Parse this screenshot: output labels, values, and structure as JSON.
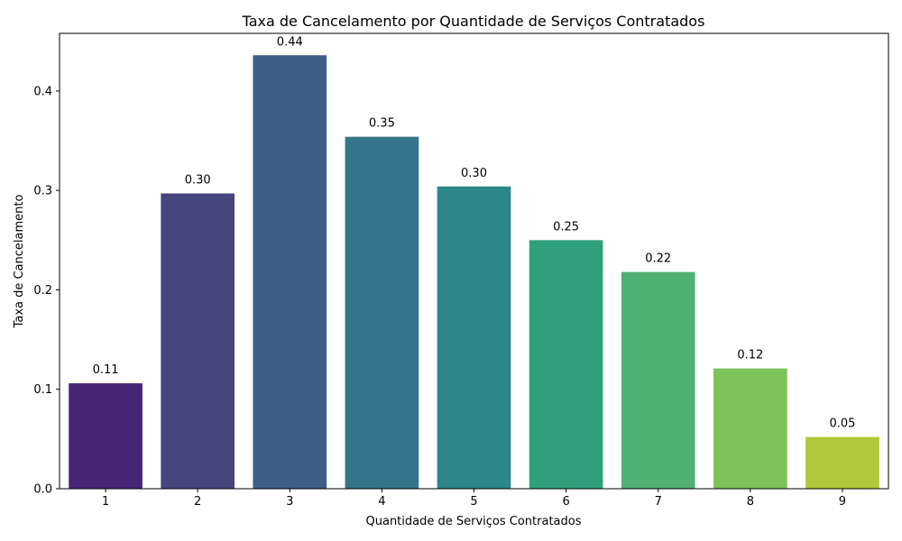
{
  "chart_data": {
    "type": "bar",
    "title": "Taxa de Cancelamento por Quantidade de Serviços Contratados",
    "xlabel": "Quantidade de Serviços Contratados",
    "ylabel": "Taxa de Cancelamento",
    "categories": [
      "1",
      "2",
      "3",
      "4",
      "5",
      "6",
      "7",
      "8",
      "9"
    ],
    "values": [
      0.106,
      0.297,
      0.436,
      0.354,
      0.304,
      0.25,
      0.218,
      0.121,
      0.052
    ],
    "data_labels": [
      "0.11",
      "0.30",
      "0.44",
      "0.35",
      "0.30",
      "0.25",
      "0.22",
      "0.12",
      "0.05"
    ],
    "colors": [
      "#482677",
      "#46467f",
      "#3e5e87",
      "#35748a",
      "#2c888a",
      "#2fa07b",
      "#50b074",
      "#7cc35a",
      "#b0c83a"
    ],
    "ylim": [
      0,
      0.458
    ],
    "yticks": [
      0.0,
      0.1,
      0.2,
      0.3,
      0.4
    ],
    "ytick_labels": [
      "0.0",
      "0.1",
      "0.2",
      "0.3",
      "0.4"
    ],
    "grid": false,
    "legend": "none"
  }
}
